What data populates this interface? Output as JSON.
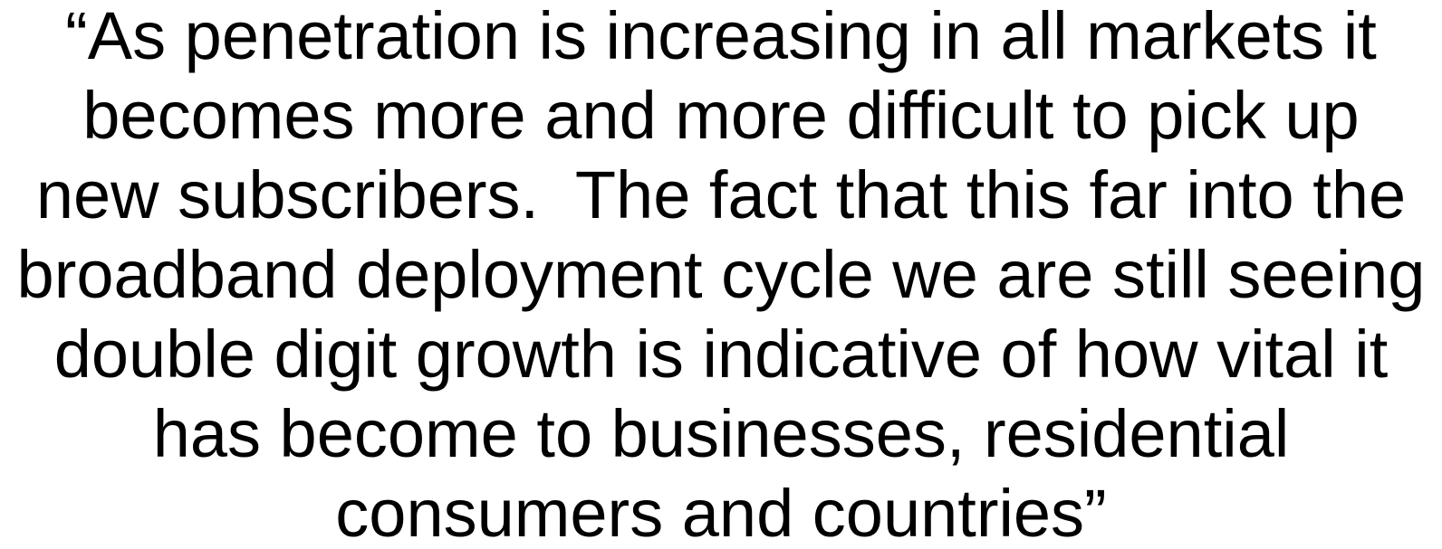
{
  "quote": {
    "lines": [
      "“As penetration is increasing in all markets it",
      "becomes more and more difficult to pick up",
      "new subscribers.  The fact that this far into the",
      "broadband deployment cycle we are still seeing",
      "double digit growth is indicative of how vital it",
      "has become to businesses, residential",
      "consumers and countries”"
    ]
  }
}
